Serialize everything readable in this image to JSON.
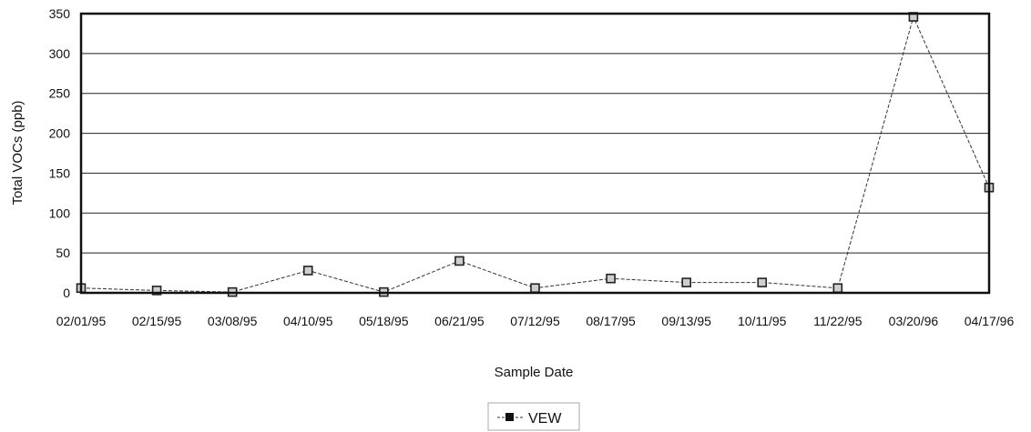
{
  "chart_data": {
    "type": "line",
    "title": "",
    "xlabel": "Sample Date",
    "ylabel": "Total VOCs (ppb)",
    "ylim": [
      0,
      350
    ],
    "yticks": [
      0,
      50,
      100,
      150,
      200,
      250,
      300,
      350
    ],
    "grid": true,
    "legend_position": "bottom-center",
    "categories": [
      "02/01/95",
      "02/15/95",
      "03/08/95",
      "04/10/95",
      "05/18/95",
      "06/21/95",
      "07/12/95",
      "08/17/95",
      "09/13/95",
      "10/11/95",
      "11/22/95",
      "03/20/96",
      "04/17/96"
    ],
    "series": [
      {
        "name": "VEW",
        "values": [
          6,
          3,
          1,
          28,
          1,
          40,
          6,
          18,
          13,
          13,
          6,
          346,
          132
        ]
      }
    ],
    "colors": {
      "line": "#333333",
      "marker_fill": "#cfcfcf",
      "marker_edge": "#222222",
      "grid": "#222222"
    }
  }
}
